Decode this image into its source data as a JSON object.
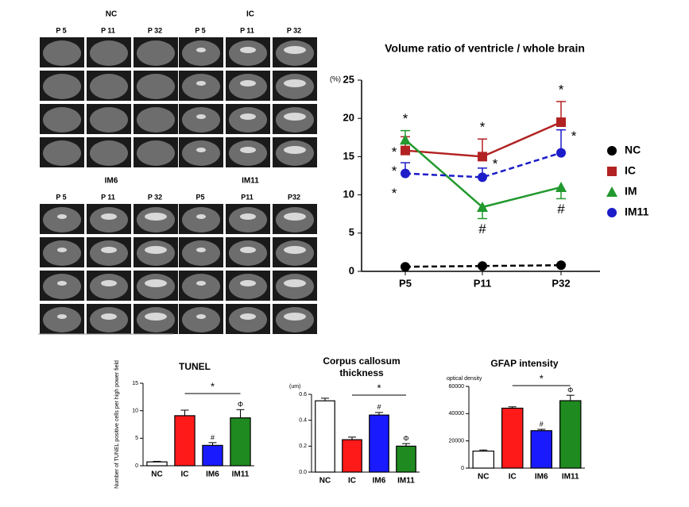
{
  "chart_data": [
    {
      "type": "line",
      "title": "Volume ratio of ventricle / whole brain",
      "y_label": "(%)",
      "categories": [
        "P5",
        "P11",
        "P32"
      ],
      "ylim": [
        0,
        25
      ],
      "yticks": [
        0,
        5,
        10,
        15,
        20,
        25
      ],
      "series": [
        {
          "name": "NC",
          "color": "#000000",
          "dashed": true,
          "marker": "circle",
          "values": [
            0.6,
            0.7,
            0.8
          ],
          "errors": [
            0.1,
            0.1,
            0.1
          ],
          "annotations": [
            null,
            null,
            null
          ]
        },
        {
          "name": "IC",
          "color": "#b22222",
          "dashed": false,
          "marker": "square",
          "values": [
            15.8,
            15.0,
            19.5
          ],
          "errors": [
            1.8,
            2.3,
            2.7
          ],
          "annotations": [
            "*",
            "*",
            "*"
          ]
        },
        {
          "name": "IM",
          "color": "#22992e",
          "dashed": false,
          "marker": "triangle",
          "values": [
            17.2,
            8.4,
            11.0
          ],
          "errors": [
            1.2,
            1.5,
            1.5
          ],
          "annotations": [
            "*",
            "#",
            "#"
          ]
        },
        {
          "name": "IM11",
          "color": "#1c1cc8",
          "dashed": true,
          "marker": "circle",
          "values": [
            12.8,
            12.3,
            15.5
          ],
          "errors": [
            1.4,
            1.2,
            3.0
          ],
          "annotations": [
            "*",
            "*",
            "*"
          ]
        }
      ]
    },
    {
      "type": "bar",
      "title": "TUNEL",
      "y_label": "Number of TUNEL positive cells per high power field",
      "categories": [
        "NC",
        "IC",
        "IM6",
        "IM11"
      ],
      "values": [
        0.7,
        9.1,
        3.7,
        8.7
      ],
      "errors": [
        0.1,
        1.0,
        0.5,
        1.5
      ],
      "colors": [
        "#ffffff",
        "#ff1a1a",
        "#1a1aff",
        "#1f8a1f"
      ],
      "marks": [
        null,
        null,
        "#",
        "Φ"
      ],
      "significance": "*",
      "ylim": [
        0,
        15
      ],
      "yticks": [
        0,
        5,
        10,
        15
      ]
    },
    {
      "type": "bar",
      "title": "Corpus callosum thickness",
      "y_label": "(um)",
      "categories": [
        "NC",
        "IC",
        "IM6",
        "IM11"
      ],
      "values": [
        0.55,
        0.25,
        0.44,
        0.2
      ],
      "errors": [
        0.02,
        0.02,
        0.02,
        0.02
      ],
      "colors": [
        "#ffffff",
        "#ff1a1a",
        "#1a1aff",
        "#1f8a1f"
      ],
      "marks": [
        null,
        null,
        "#",
        "Φ"
      ],
      "significance": "*",
      "ylim": [
        0,
        0.6
      ],
      "yticks": [
        {
          "value": 0,
          "label": "0.0"
        },
        0.2,
        0.4,
        0.6
      ]
    },
    {
      "type": "bar",
      "title": "GFAP intensity",
      "y_label": "optical density",
      "categories": [
        "NC",
        "IC",
        "IM6",
        "IM11"
      ],
      "values": [
        12500,
        44000,
        27500,
        49500
      ],
      "errors": [
        800,
        1000,
        1000,
        4000
      ],
      "colors": [
        "#ffffff",
        "#ff1a1a",
        "#1a1aff",
        "#1f8a1f"
      ],
      "marks": [
        null,
        null,
        "#",
        "Φ"
      ],
      "significance": "*",
      "ylim": [
        0,
        60000
      ],
      "yticks": [
        0,
        20000,
        40000,
        60000
      ]
    }
  ],
  "mri_panel": {
    "groups": [
      {
        "label": "NC",
        "timepoints": [
          "P 5",
          "P 11",
          "P 32"
        ]
      },
      {
        "label": "IC",
        "timepoints": [
          "P 5",
          "P 11",
          "P 32"
        ]
      },
      {
        "label": "IM6",
        "timepoints": [
          "P 5",
          "P 11",
          "P 32"
        ]
      },
      {
        "label": "IM11",
        "timepoints": [
          "P5",
          "P11",
          "P32"
        ]
      }
    ]
  }
}
